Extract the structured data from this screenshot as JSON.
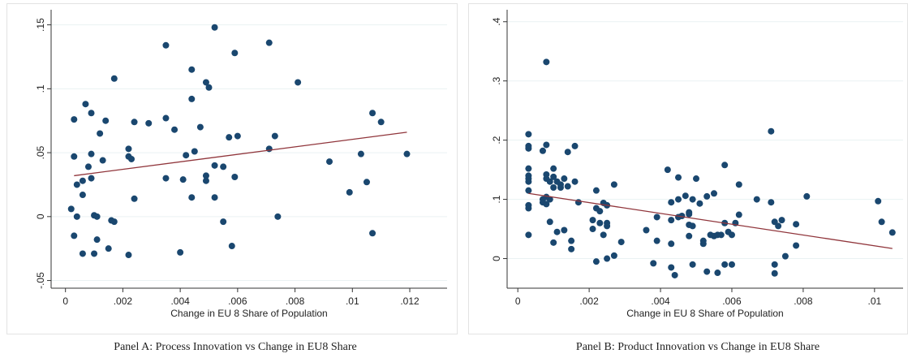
{
  "captions": {
    "a": "Panel A: Process Innovation vs Change in EU8 Share",
    "b": "Panel B: Product Innovation vs Change in EU8 Share"
  },
  "colors": {
    "point": "#1a476f",
    "fit": "#90353b",
    "grid": "#eaf2f3",
    "axis": "#333333"
  },
  "chart_data": [
    {
      "type": "scatter",
      "title": "Panel A: Process Innovation vs Change in EU8 Share",
      "xlabel": "Change in EU 8 Share of Population",
      "ylabel": "",
      "xlim": [
        -0.0005,
        0.0133
      ],
      "ylim": [
        -0.056,
        0.158
      ],
      "xticks": [
        0,
        0.002,
        0.004,
        0.006,
        0.008,
        0.01,
        0.012
      ],
      "xtick_labels": [
        "0",
        ".002",
        ".004",
        ".006",
        ".008",
        ".01",
        ".012"
      ],
      "yticks": [
        -0.05,
        0,
        0.05,
        0.1,
        0.15
      ],
      "ytick_labels": [
        "-.05",
        "0",
        ".05",
        ".1",
        ".15"
      ],
      "grid": true,
      "fit_line": {
        "x": [
          0.0003,
          0.0119
        ],
        "y": [
          0.032,
          0.066
        ]
      },
      "points": [
        [
          0.0002,
          0.006
        ],
        [
          0.0003,
          0.076
        ],
        [
          0.0003,
          0.047
        ],
        [
          0.0003,
          -0.015
        ],
        [
          0.0004,
          0.025
        ],
        [
          0.0004,
          0.0
        ],
        [
          0.0006,
          0.017
        ],
        [
          0.0006,
          0.028
        ],
        [
          0.0006,
          -0.029
        ],
        [
          0.0007,
          0.088
        ],
        [
          0.0008,
          0.039
        ],
        [
          0.0009,
          0.081
        ],
        [
          0.0009,
          0.049
        ],
        [
          0.0009,
          0.03
        ],
        [
          0.001,
          0.001
        ],
        [
          0.001,
          -0.029
        ],
        [
          0.0011,
          0.0
        ],
        [
          0.0011,
          -0.018
        ],
        [
          0.0012,
          0.065
        ],
        [
          0.0013,
          0.044
        ],
        [
          0.0014,
          0.075
        ],
        [
          0.0015,
          -0.025
        ],
        [
          0.0016,
          -0.003
        ],
        [
          0.0017,
          -0.004
        ],
        [
          0.0017,
          0.108
        ],
        [
          0.0022,
          0.053
        ],
        [
          0.0022,
          0.047
        ],
        [
          0.0023,
          0.045
        ],
        [
          0.0022,
          -0.03
        ],
        [
          0.0024,
          0.014
        ],
        [
          0.0024,
          0.074
        ],
        [
          0.0029,
          0.073
        ],
        [
          0.0035,
          0.077
        ],
        [
          0.0035,
          0.134
        ],
        [
          0.0035,
          0.03
        ],
        [
          0.0038,
          0.068
        ],
        [
          0.004,
          -0.028
        ],
        [
          0.0041,
          0.029
        ],
        [
          0.0042,
          0.048
        ],
        [
          0.0044,
          0.092
        ],
        [
          0.0044,
          0.115
        ],
        [
          0.0044,
          0.015
        ],
        [
          0.0045,
          0.051
        ],
        [
          0.0047,
          0.07
        ],
        [
          0.0049,
          0.105
        ],
        [
          0.0049,
          0.032
        ],
        [
          0.005,
          0.101
        ],
        [
          0.0049,
          0.028
        ],
        [
          0.0052,
          0.148
        ],
        [
          0.0052,
          0.015
        ],
        [
          0.0052,
          0.04
        ],
        [
          0.0055,
          0.039
        ],
        [
          0.0055,
          -0.004
        ],
        [
          0.0057,
          0.062
        ],
        [
          0.0058,
          -0.023
        ],
        [
          0.0059,
          0.128
        ],
        [
          0.0059,
          0.031
        ],
        [
          0.006,
          0.063
        ],
        [
          0.0071,
          0.136
        ],
        [
          0.0071,
          0.053
        ],
        [
          0.0073,
          0.063
        ],
        [
          0.0074,
          0.0
        ],
        [
          0.0081,
          0.105
        ],
        [
          0.0092,
          0.043
        ],
        [
          0.0099,
          0.019
        ],
        [
          0.0103,
          0.049
        ],
        [
          0.0105,
          0.027
        ],
        [
          0.0107,
          0.081
        ],
        [
          0.0107,
          -0.013
        ],
        [
          0.011,
          0.074
        ],
        [
          0.0119,
          0.049
        ]
      ]
    },
    {
      "type": "scatter",
      "title": "Panel B: Product Innovation vs Change in EU8 Share",
      "xlabel": "Change in EU 8 Share of Population",
      "ylabel": "",
      "xlim": [
        -0.0003,
        0.0108
      ],
      "ylim": [
        -0.05,
        0.412
      ],
      "xticks": [
        0,
        0.002,
        0.004,
        0.006,
        0.008,
        0.01
      ],
      "xtick_labels": [
        "0",
        ".002",
        ".004",
        ".006",
        ".008",
        ".01"
      ],
      "yticks": [
        0,
        0.1,
        0.2,
        0.3,
        0.4
      ],
      "ytick_labels": [
        "0",
        ".1",
        ".2",
        ".3",
        ".4"
      ],
      "grid": true,
      "fit_line": {
        "x": [
          0.0003,
          0.0105
        ],
        "y": [
          0.11,
          0.017
        ]
      },
      "points": [
        [
          0.0003,
          0.21
        ],
        [
          0.0003,
          0.19
        ],
        [
          0.0003,
          0.186
        ],
        [
          0.0003,
          0.152
        ],
        [
          0.0003,
          0.14
        ],
        [
          0.0003,
          0.135
        ],
        [
          0.0003,
          0.13
        ],
        [
          0.0003,
          0.115
        ],
        [
          0.0003,
          0.09
        ],
        [
          0.0003,
          0.085
        ],
        [
          0.0003,
          0.04
        ],
        [
          0.0007,
          0.1
        ],
        [
          0.0007,
          0.095
        ],
        [
          0.0007,
          0.182
        ],
        [
          0.0008,
          0.332
        ],
        [
          0.0008,
          0.192
        ],
        [
          0.0008,
          0.142
        ],
        [
          0.0008,
          0.135
        ],
        [
          0.0008,
          0.104
        ],
        [
          0.0008,
          0.092
        ],
        [
          0.0009,
          0.13
        ],
        [
          0.0009,
          0.1
        ],
        [
          0.0009,
          0.062
        ],
        [
          0.001,
          0.12
        ],
        [
          0.001,
          0.138
        ],
        [
          0.001,
          0.152
        ],
        [
          0.001,
          0.027
        ],
        [
          0.0011,
          0.13
        ],
        [
          0.0011,
          0.045
        ],
        [
          0.0012,
          0.12
        ],
        [
          0.0012,
          0.125
        ],
        [
          0.0013,
          0.135
        ],
        [
          0.0013,
          0.048
        ],
        [
          0.0014,
          0.122
        ],
        [
          0.0014,
          0.18
        ],
        [
          0.0015,
          0.016
        ],
        [
          0.0015,
          0.03
        ],
        [
          0.0016,
          0.19
        ],
        [
          0.0016,
          0.13
        ],
        [
          0.0017,
          0.095
        ],
        [
          0.0021,
          0.065
        ],
        [
          0.0021,
          0.05
        ],
        [
          0.0022,
          0.115
        ],
        [
          0.0022,
          -0.005
        ],
        [
          0.0022,
          0.085
        ],
        [
          0.0023,
          0.08
        ],
        [
          0.0023,
          0.06
        ],
        [
          0.0024,
          0.04
        ],
        [
          0.0024,
          0.094
        ],
        [
          0.0025,
          0.09
        ],
        [
          0.0025,
          0.06
        ],
        [
          0.0025,
          0.055
        ],
        [
          0.0025,
          0.0
        ],
        [
          0.0027,
          0.125
        ],
        [
          0.0027,
          0.005
        ],
        [
          0.0029,
          0.028
        ],
        [
          0.0036,
          0.048
        ],
        [
          0.0038,
          -0.008
        ],
        [
          0.0039,
          0.07
        ],
        [
          0.0039,
          0.03
        ],
        [
          0.0042,
          0.15
        ],
        [
          0.0043,
          0.095
        ],
        [
          0.0043,
          0.065
        ],
        [
          0.0043,
          0.025
        ],
        [
          0.0043,
          -0.015
        ],
        [
          0.0044,
          -0.028
        ],
        [
          0.0045,
          0.137
        ],
        [
          0.0045,
          0.07
        ],
        [
          0.0045,
          0.1
        ],
        [
          0.0046,
          0.072
        ],
        [
          0.0047,
          0.106
        ],
        [
          0.0048,
          0.078
        ],
        [
          0.0048,
          0.075
        ],
        [
          0.0048,
          0.057
        ],
        [
          0.0048,
          0.038
        ],
        [
          0.0049,
          -0.01
        ],
        [
          0.0049,
          0.1
        ],
        [
          0.0049,
          0.055
        ],
        [
          0.005,
          0.135
        ],
        [
          0.0051,
          0.093
        ],
        [
          0.0052,
          0.03
        ],
        [
          0.0052,
          0.025
        ],
        [
          0.0053,
          0.105
        ],
        [
          0.0053,
          -0.022
        ],
        [
          0.0054,
          0.04
        ],
        [
          0.0055,
          0.11
        ],
        [
          0.0055,
          0.038
        ],
        [
          0.0056,
          -0.024
        ],
        [
          0.0056,
          0.04
        ],
        [
          0.0057,
          0.04
        ],
        [
          0.0058,
          0.158
        ],
        [
          0.0058,
          0.06
        ],
        [
          0.0058,
          -0.01
        ],
        [
          0.0059,
          0.045
        ],
        [
          0.006,
          0.04
        ],
        [
          0.006,
          -0.01
        ],
        [
          0.0061,
          0.06
        ],
        [
          0.0062,
          0.125
        ],
        [
          0.0062,
          0.074
        ],
        [
          0.0067,
          0.1
        ],
        [
          0.0071,
          0.215
        ],
        [
          0.0071,
          0.095
        ],
        [
          0.0072,
          0.062
        ],
        [
          0.0072,
          -0.01
        ],
        [
          0.0072,
          -0.025
        ],
        [
          0.0073,
          0.055
        ],
        [
          0.0074,
          0.065
        ],
        [
          0.0075,
          0.004
        ],
        [
          0.0078,
          0.022
        ],
        [
          0.0078,
          0.058
        ],
        [
          0.0081,
          0.105
        ],
        [
          0.0101,
          0.097
        ],
        [
          0.0102,
          0.062
        ],
        [
          0.0105,
          0.044
        ]
      ]
    }
  ]
}
